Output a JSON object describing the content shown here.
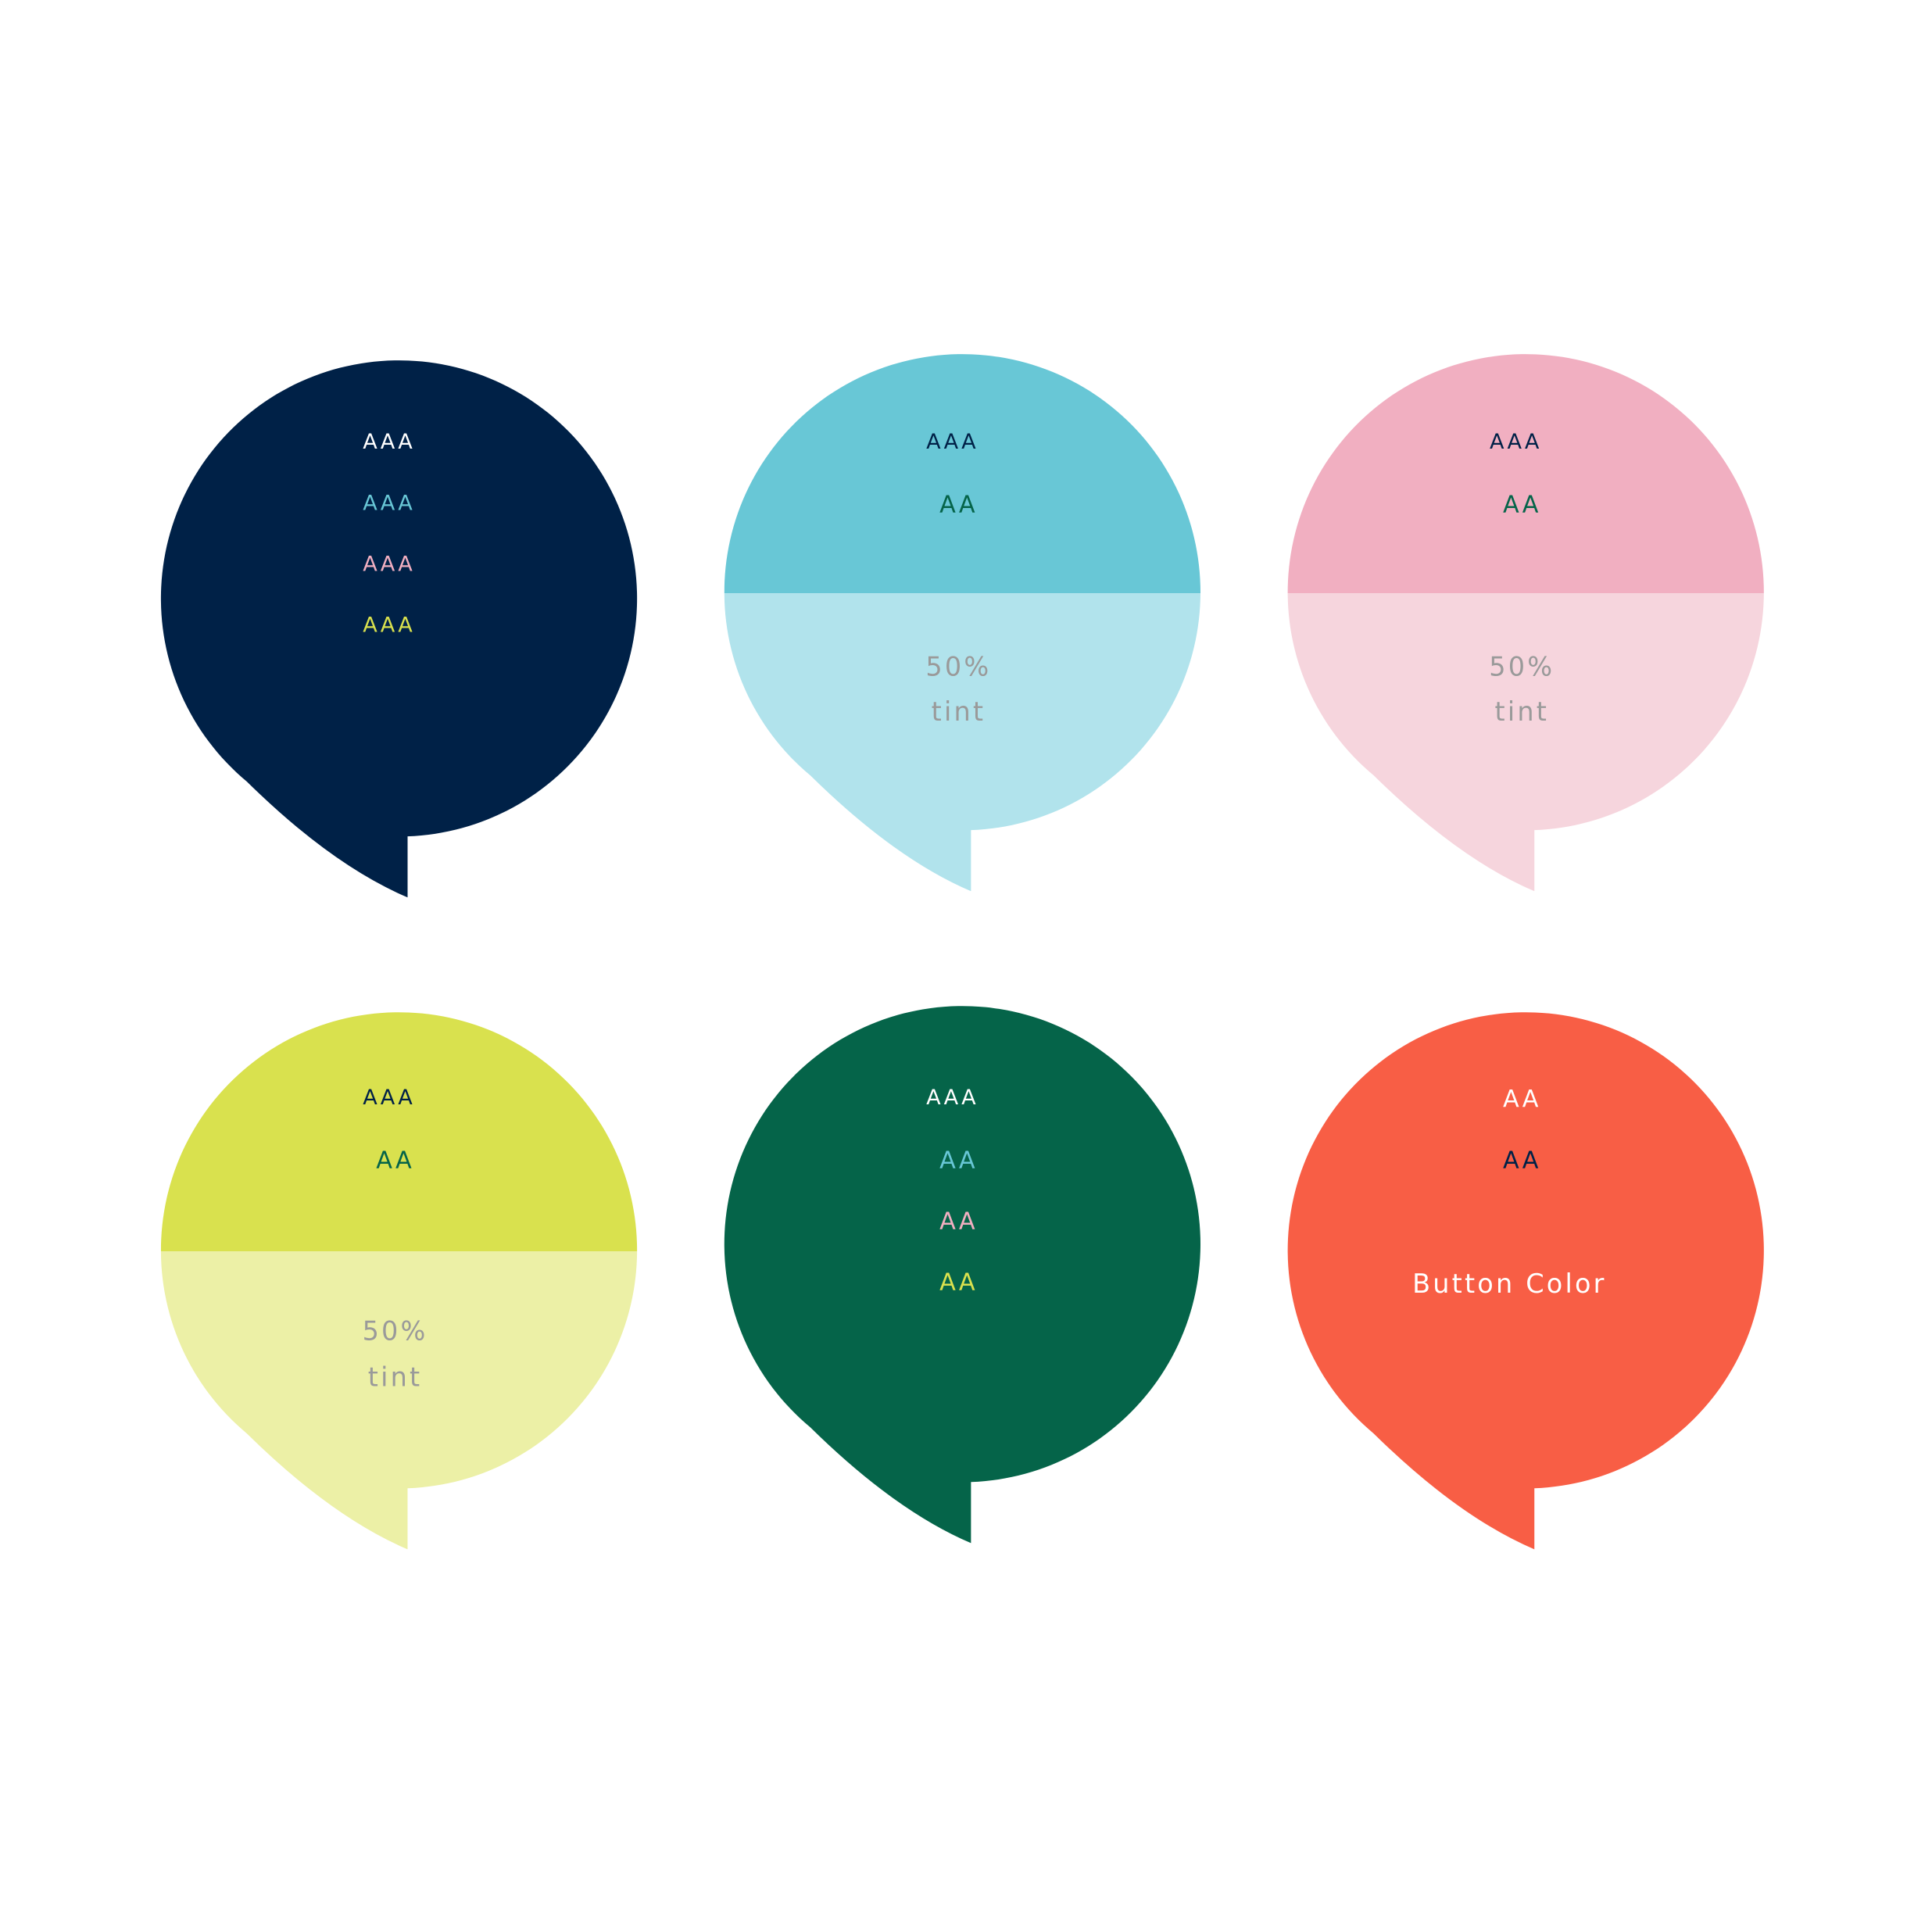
{
  "colors": {
    "navy": "#002147",
    "cyan": "#68C7D6",
    "cyan_tint": "#B1E3EC",
    "pink": "#F1AFC1",
    "pink_tint": "#F6D5DD",
    "lime": "#D9E14E",
    "lime_tint": "#ECF0A6",
    "green": "#056449",
    "coral": "#F85E45",
    "white": "#FFFFFF",
    "tint_text": "#9A9A9A"
  },
  "bubbles": [
    {
      "name": "navy",
      "labels": [
        {
          "text": "AAA",
          "color": "#FFFFFF"
        },
        {
          "text": "AAA",
          "color": "#68C7D6"
        },
        {
          "text": "AAA",
          "color": "#F1AFC1"
        },
        {
          "text": "AAA",
          "color": "#D9E14E"
        }
      ]
    },
    {
      "name": "cyan",
      "labels": [
        {
          "text": "AAA",
          "color": "#002147"
        },
        {
          "text": "AA",
          "color": "#056449"
        }
      ],
      "tint": [
        "50%",
        "tint"
      ]
    },
    {
      "name": "pink",
      "labels": [
        {
          "text": "AAA",
          "color": "#002147"
        },
        {
          "text": "AA",
          "color": "#056449"
        }
      ],
      "tint": [
        "50%",
        "tint"
      ]
    },
    {
      "name": "lime",
      "labels": [
        {
          "text": "AAA",
          "color": "#002147"
        },
        {
          "text": "AA",
          "color": "#056449"
        }
      ],
      "tint": [
        "50%",
        "tint"
      ]
    },
    {
      "name": "green",
      "labels": [
        {
          "text": "AAA",
          "color": "#FFFFFF"
        },
        {
          "text": "AA",
          "color": "#68C7D6"
        },
        {
          "text": "AA",
          "color": "#F1AFC1"
        },
        {
          "text": "AA",
          "color": "#D9E14E"
        }
      ]
    },
    {
      "name": "coral",
      "labels": [
        {
          "text": "AA",
          "color": "#FFFFFF"
        },
        {
          "text": "AA",
          "color": "#002147"
        }
      ],
      "caption": "Button Color"
    }
  ]
}
